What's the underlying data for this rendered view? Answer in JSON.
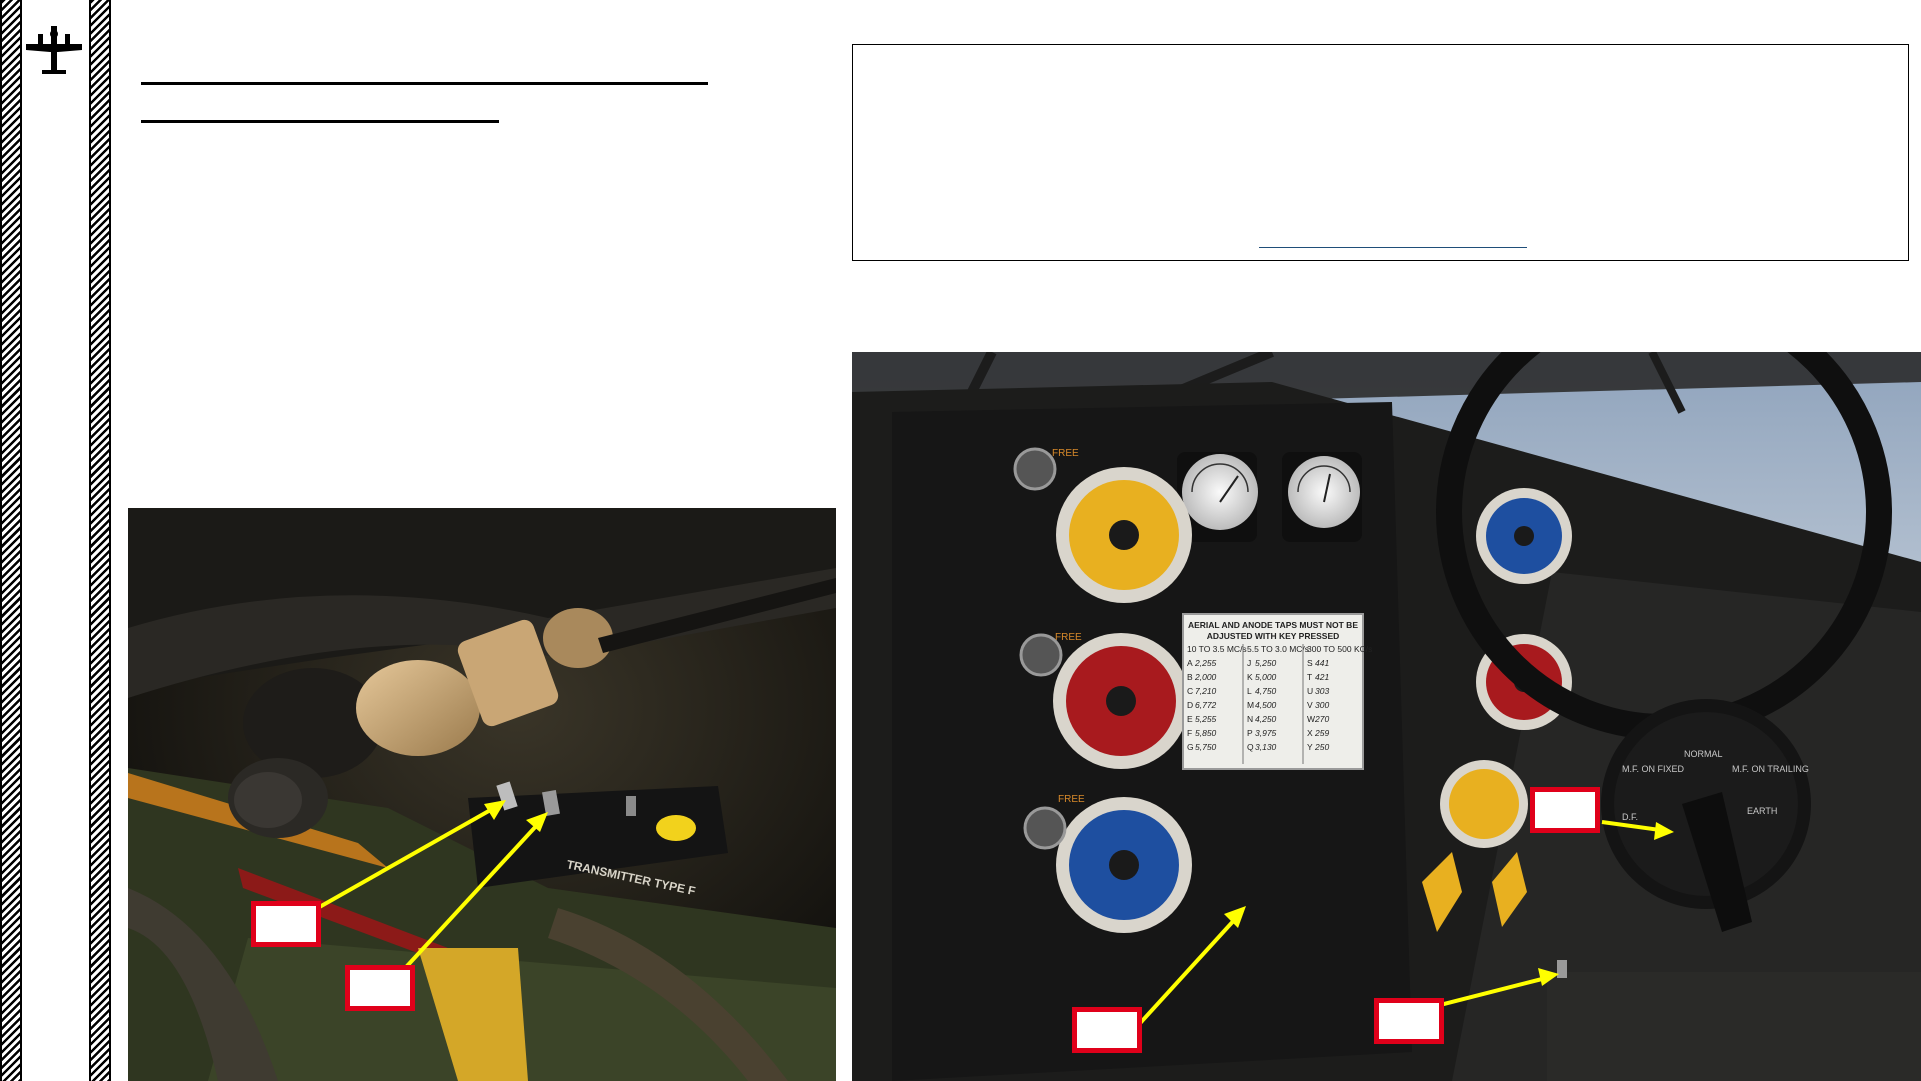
{
  "photo_left": {
    "device_label": "TRANSMITTER TYPE F"
  },
  "photo_right": {
    "placard": {
      "heading_1": "AERIAL AND ANODE TAPS MUST NOT BE",
      "heading_2": "ADJUSTED WITH KEY PRESSED",
      "col_headers": [
        "10 TO 3.5 MC/s",
        "5.5 TO 3.0 MC/s",
        "300 TO 500 KC/s"
      ],
      "rows": [
        [
          "A",
          "2,255",
          "J",
          "5,250",
          "S",
          "441"
        ],
        [
          "B",
          "2,000",
          "K",
          "5,000",
          "T",
          "421"
        ],
        [
          "C",
          "7,210",
          "L",
          "4,750",
          "U",
          "303"
        ],
        [
          "D",
          "6,772",
          "M",
          "4,500",
          "V",
          "300"
        ],
        [
          "E",
          "5,255",
          "N",
          "4,250",
          "W",
          "270"
        ],
        [
          "F",
          "5,850",
          "P",
          "3,975",
          "X",
          "259"
        ],
        [
          "G",
          "5,750",
          "Q",
          "3,130",
          "Y",
          "250"
        ]
      ]
    },
    "switch_labels": {
      "mf_on_fixed": "M.F. ON FIXED",
      "normal": "NORMAL",
      "mf_on_trailing": "M.F. ON TRAILING",
      "earth": "EARTH",
      "df": "D.F."
    },
    "knob_letters": {
      "free_1": "FREE",
      "free_2": "FREE",
      "free_3": "FREE"
    }
  },
  "colors": {
    "callout_border": "#e0001a",
    "arrow": "#ffff00",
    "knob_yellow": "#e8b020",
    "knob_red": "#a81a1e",
    "knob_blue": "#1e4fa0"
  }
}
